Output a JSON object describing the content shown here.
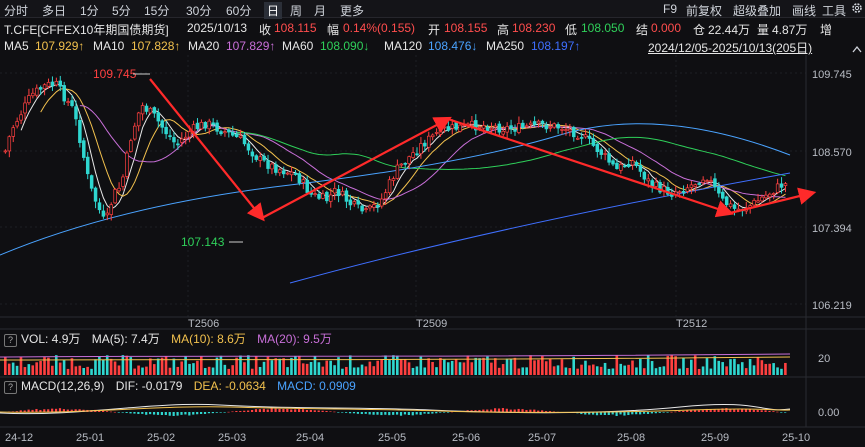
{
  "toolbar": {
    "periods": [
      "分时",
      "多日",
      "1分",
      "5分",
      "15分",
      "30分",
      "60分",
      "日",
      "周",
      "月",
      "更多"
    ],
    "selected": "日",
    "right": [
      "F9",
      "前复权",
      "超级叠加",
      "画线",
      "工具"
    ]
  },
  "info": {
    "symbol": "T.CFE[CFFEX10年期国债期货]",
    "date": "2025/10/13",
    "close_label": "收",
    "close": "108.115",
    "change_label": "幅",
    "change": "0.14%(0.155)",
    "open_label": "开",
    "open": "108.155",
    "high_label": "高",
    "high": "108.230",
    "low_label": "低",
    "low": "108.050",
    "settle_label": "结",
    "settle": "0.000",
    "oi_label": "仓",
    "oi": "22.44万",
    "vol_label": "量",
    "vol": "4.87万",
    "more_label": "增"
  },
  "ma": {
    "ma5_label": "MA5",
    "ma5": "107.929↑",
    "ma10_label": "MA10",
    "ma10": "107.828↑",
    "ma20_label": "MA20",
    "ma20": "107.829↑",
    "ma60_label": "MA60",
    "ma60": "108.090↓",
    "ma120_label": "MA120",
    "ma120": "108.476↓",
    "ma250_label": "MA250",
    "ma250": "108.197↑",
    "range": "2024/12/05-2025/10/13(205日)",
    "colors": {
      "ma5": "#e8e8e8",
      "ma10": "#f2c14e",
      "ma20": "#c86fd8",
      "ma60": "#2fd05a",
      "ma120": "#4aa3ff",
      "ma250": "#3f6fff"
    }
  },
  "price_axis": [
    "109.745",
    "108.570",
    "107.394",
    "106.219"
  ],
  "annotations": {
    "high": "109.745",
    "low": "107.143"
  },
  "contracts": [
    "T2506",
    "T2509",
    "T2512"
  ],
  "volume_panel": {
    "qmark": "?",
    "vol_label": "VOL: 4.9万",
    "ma5_label": "MA(5): 7.4万",
    "ma10_label": "MA(10): 8.6万",
    "ma20_label": "MA(20): 9.5万",
    "axis": "20"
  },
  "macd_panel": {
    "qmark": "?",
    "title": "MACD(12,26,9)",
    "dif_label": "DIF: -0.0179",
    "dea_label": "DEA: -0.0634",
    "macd_label": "MACD: 0.0909",
    "axis": "0.00"
  },
  "x_axis": [
    "24-12",
    "25-01",
    "25-02",
    "25-03",
    "25-04",
    "25-05",
    "25-06",
    "25-07",
    "25-08",
    "25-09",
    "25-10"
  ],
  "colors": {
    "up": "#ff4040",
    "down": "#2fd7d0",
    "arrow": "#ff2a2a"
  }
}
